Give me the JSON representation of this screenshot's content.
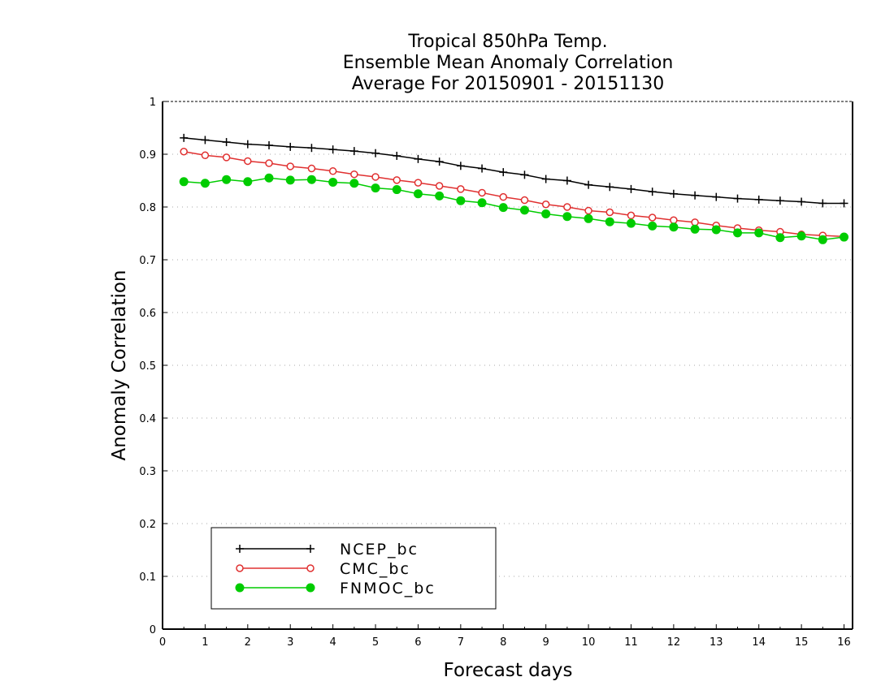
{
  "chart_data": {
    "type": "line",
    "title": [
      "Tropical 850hPa Temp.",
      "Ensemble Mean Anomaly Correlation",
      "Average For 20150901 - 20151130"
    ],
    "xlabel": "Forecast days",
    "ylabel": "Anomaly Correlation",
    "xlim": [
      0,
      16.2
    ],
    "ylim": [
      0,
      1
    ],
    "xticks": [
      "0",
      "1",
      "2",
      "3",
      "4",
      "5",
      "6",
      "7",
      "8",
      "9",
      "10",
      "11",
      "12",
      "13",
      "14",
      "15",
      "16"
    ],
    "yticks": [
      "0",
      "0.1",
      "0.2",
      "0.3",
      "0.4",
      "0.5",
      "0.6",
      "0.7",
      "0.8",
      "0.9",
      "1"
    ],
    "grid": "horizontal dotted",
    "legend_position": "bottom-left",
    "x": [
      0.5,
      1,
      1.5,
      2,
      2.5,
      3,
      3.5,
      4,
      4.5,
      5,
      5.5,
      6,
      6.5,
      7,
      7.5,
      8,
      8.5,
      9,
      9.5,
      10,
      10.5,
      11,
      11.5,
      12,
      12.5,
      13,
      13.5,
      14,
      14.5,
      15,
      15.5,
      16
    ],
    "series": [
      {
        "name": "NCEP_bc",
        "color": "#000000",
        "marker": "plus",
        "values": [
          0.931,
          0.927,
          0.923,
          0.919,
          0.917,
          0.914,
          0.912,
          0.909,
          0.906,
          0.902,
          0.897,
          0.891,
          0.886,
          0.878,
          0.873,
          0.866,
          0.861,
          0.853,
          0.85,
          0.842,
          0.838,
          0.834,
          0.829,
          0.825,
          0.822,
          0.819,
          0.816,
          0.814,
          0.812,
          0.81,
          0.807,
          0.807
        ]
      },
      {
        "name": "CMC_bc",
        "color": "#e03030",
        "marker": "open-circle",
        "values": [
          0.905,
          0.898,
          0.894,
          0.887,
          0.883,
          0.877,
          0.873,
          0.868,
          0.862,
          0.857,
          0.851,
          0.846,
          0.84,
          0.834,
          0.827,
          0.819,
          0.813,
          0.805,
          0.8,
          0.793,
          0.79,
          0.784,
          0.78,
          0.775,
          0.771,
          0.765,
          0.76,
          0.756,
          0.753,
          0.748,
          0.746,
          0.744
        ]
      },
      {
        "name": "FNMOC_bc",
        "color": "#00cc00",
        "marker": "filled-circle",
        "values": [
          0.848,
          0.845,
          0.852,
          0.848,
          0.855,
          0.851,
          0.852,
          0.847,
          0.845,
          0.836,
          0.833,
          0.825,
          0.821,
          0.812,
          0.808,
          0.799,
          0.794,
          0.787,
          0.782,
          0.778,
          0.772,
          0.769,
          0.764,
          0.762,
          0.758,
          0.757,
          0.751,
          0.751,
          0.742,
          0.745,
          0.738,
          0.743
        ]
      }
    ]
  }
}
